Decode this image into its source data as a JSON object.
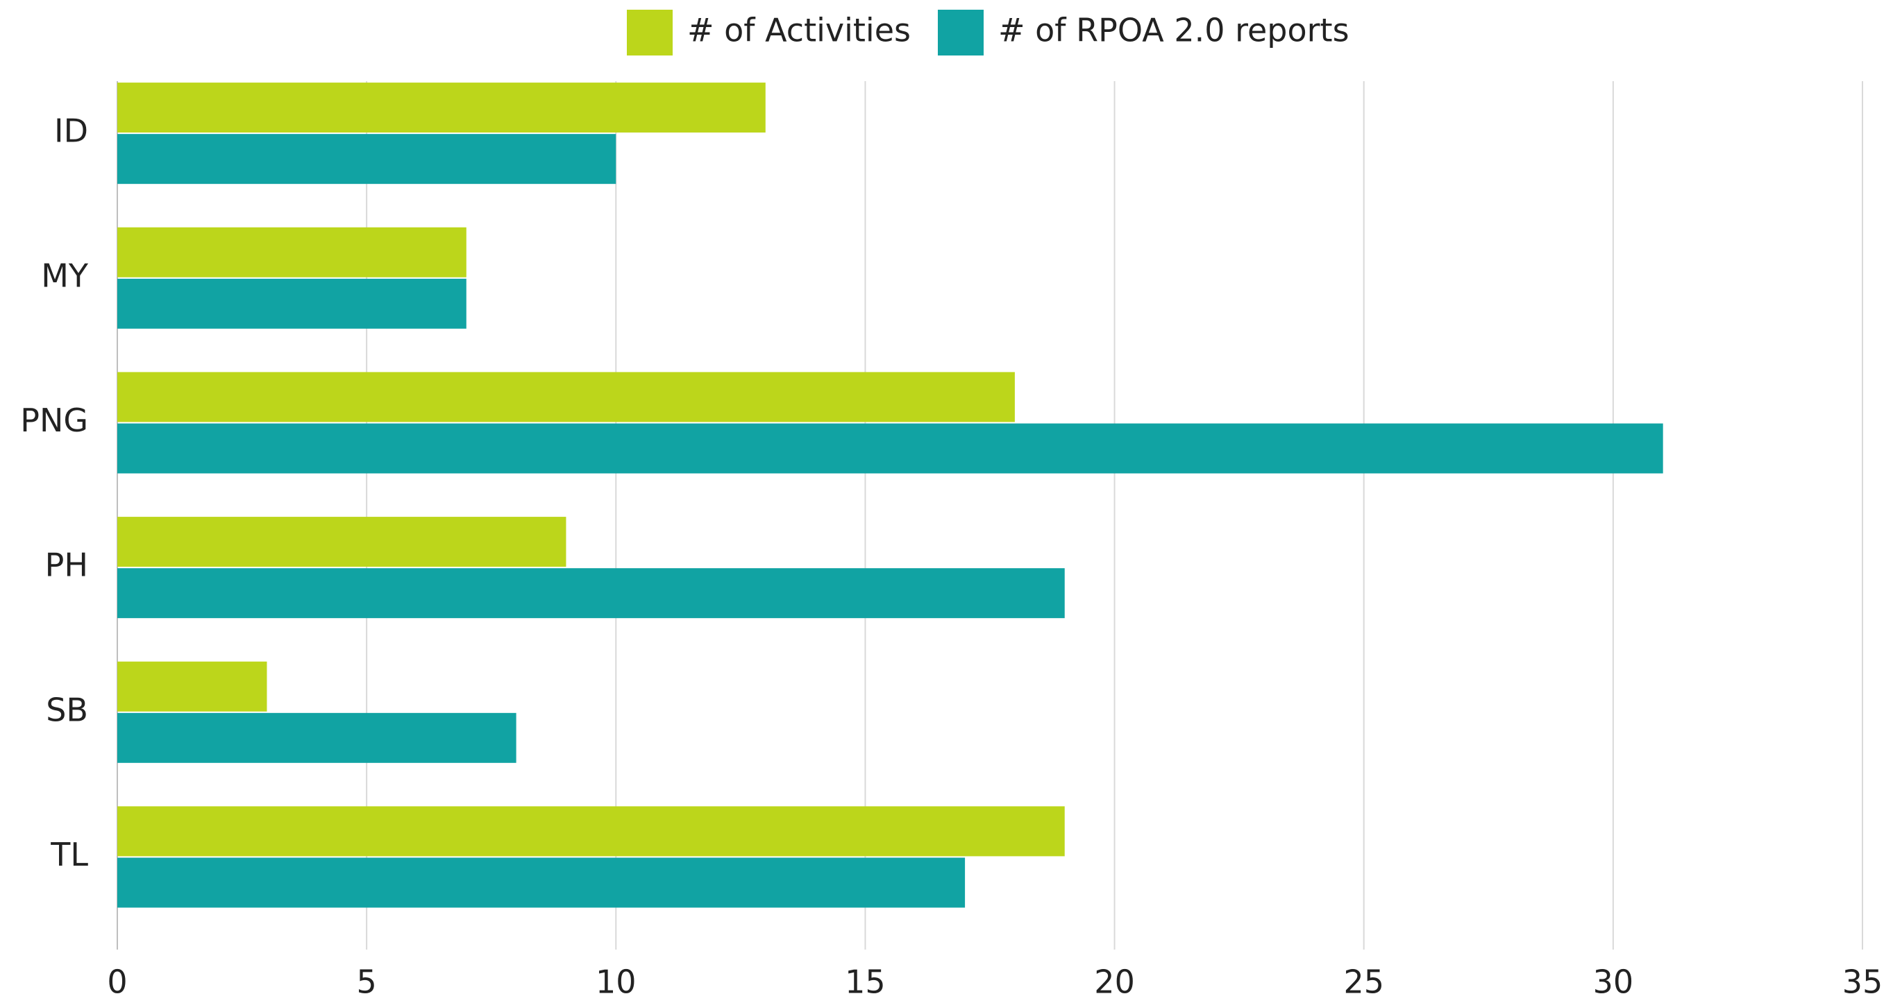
{
  "chart_data": {
    "type": "bar",
    "orientation": "horizontal",
    "categories": [
      "ID",
      "MY",
      "PNG",
      "PH",
      "SB",
      "TL"
    ],
    "series": [
      {
        "name": "# of Activities",
        "color": "#bcd61b",
        "values": [
          13,
          7,
          18,
          9,
          3,
          19
        ]
      },
      {
        "name": "# of RPOA 2.0 reports",
        "color": "#11a3a3",
        "values": [
          10,
          7,
          31,
          19,
          8,
          17
        ]
      }
    ],
    "xlim": [
      0,
      35
    ],
    "xticks": [
      0,
      5,
      10,
      15,
      20,
      25,
      30,
      35
    ],
    "grid": true,
    "legend": "top"
  }
}
